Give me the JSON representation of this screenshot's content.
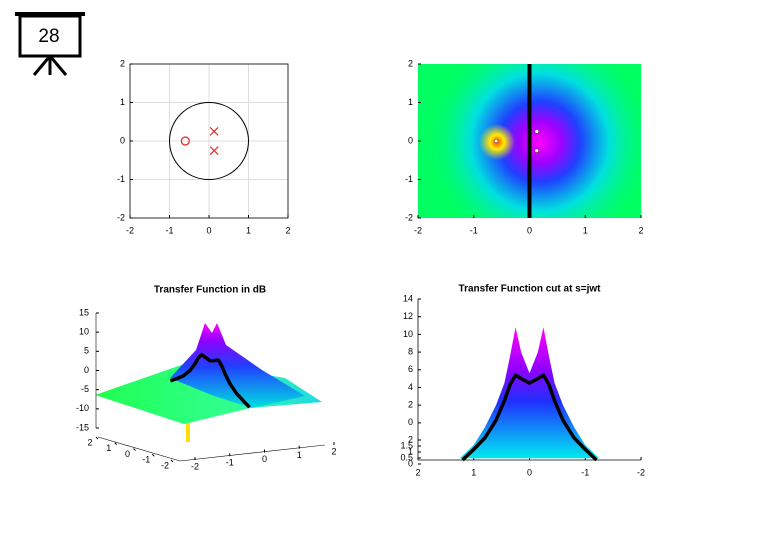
{
  "slide_number": "28",
  "chart_data": [
    {
      "type": "scatter",
      "grid": true,
      "unit_circle": true,
      "xlim": [
        -2,
        2
      ],
      "ylim": [
        -2,
        2
      ],
      "xticks": [
        -2,
        -1,
        0,
        1,
        2
      ],
      "yticks": [
        -2,
        -1,
        0,
        1,
        2
      ],
      "series": [
        {
          "marker": "o",
          "color": "#e8211f",
          "x": [
            -0.6
          ],
          "values": [
            0
          ]
        },
        {
          "marker": "x",
          "color": "#e8211f",
          "x": [
            0.13,
            0.13
          ],
          "values": [
            0.25,
            -0.25
          ]
        }
      ]
    },
    {
      "type": "heatmap",
      "vline": 0,
      "xlim": [
        -2,
        2
      ],
      "ylim": [
        -2,
        2
      ],
      "xticks": [
        -2,
        -1,
        0,
        1,
        2
      ],
      "yticks": [
        -2,
        -1,
        0,
        1,
        2
      ],
      "series": [
        {
          "marker": "dot",
          "color": "#ffffff",
          "x": [
            -0.6,
            0.13,
            0.13
          ],
          "values": [
            0,
            0.25,
            -0.25
          ]
        }
      ]
    },
    {
      "type": "surface3d",
      "title": "Transfer Function in dB",
      "xlim": [
        -2,
        2
      ],
      "ylim": [
        -2,
        2
      ],
      "zlim": [
        -15,
        15
      ],
      "xticks": [
        -2,
        -1,
        0,
        1,
        2
      ],
      "yticks": [
        2,
        1,
        0,
        -1,
        -2
      ],
      "zticks": [
        15,
        10,
        5,
        0,
        -5,
        -10,
        -15
      ],
      "series": [
        {
          "color": "#000000",
          "x": [
            1.2,
            1.0,
            0.8,
            0.6,
            0.45,
            0.35,
            0.25,
            0.15,
            0,
            -0.15,
            -0.25,
            -0.35,
            -0.45,
            -0.6,
            -0.8,
            -1.0,
            -1.2
          ],
          "values": [
            -4.2,
            -3.0,
            -1.7,
            0.3,
            2.5,
            4.3,
            5.4,
            5.0,
            4.5,
            5.0,
            5.4,
            4.3,
            2.5,
            0.3,
            -1.7,
            -3.0,
            -4.2
          ]
        }
      ]
    },
    {
      "type": "line",
      "title": "Transfer Function cut at s=jwt",
      "xlim": [
        2,
        -2
      ],
      "ylim": [
        -4.2,
        14
      ],
      "xticks": [
        2,
        1,
        0,
        -1,
        -2
      ],
      "yticks": [
        0,
        2,
        4,
        6,
        8,
        10,
        12,
        14
      ],
      "y2lim": [
        0,
        2
      ],
      "y2ticks": [
        0,
        0.5,
        1,
        1.5,
        2
      ],
      "series": [
        {
          "fill": "gradient",
          "x": [
            1.25,
            1.0,
            0.8,
            0.6,
            0.45,
            0.35,
            0.25,
            0.15,
            0,
            -0.15,
            -0.25,
            -0.35,
            -0.45,
            -0.6,
            -0.8,
            -1.0,
            -1.25
          ],
          "values": [
            -4.0,
            -2.5,
            -0.5,
            2.0,
            4.5,
            7.5,
            10.8,
            8.0,
            5.6,
            8.0,
            10.8,
            7.5,
            4.5,
            2.0,
            -0.5,
            -2.5,
            -4.0
          ]
        },
        {
          "color": "#000000",
          "x": [
            1.2,
            1.0,
            0.8,
            0.6,
            0.45,
            0.35,
            0.25,
            0.15,
            0,
            -0.15,
            -0.25,
            -0.35,
            -0.45,
            -0.6,
            -0.8,
            -1.0,
            -1.2
          ],
          "values": [
            -4.2,
            -3.0,
            -1.7,
            0.3,
            2.5,
            4.3,
            5.4,
            5.0,
            4.5,
            5.0,
            5.4,
            4.3,
            2.5,
            0.3,
            -1.7,
            -3.0,
            -4.2
          ]
        }
      ]
    }
  ]
}
